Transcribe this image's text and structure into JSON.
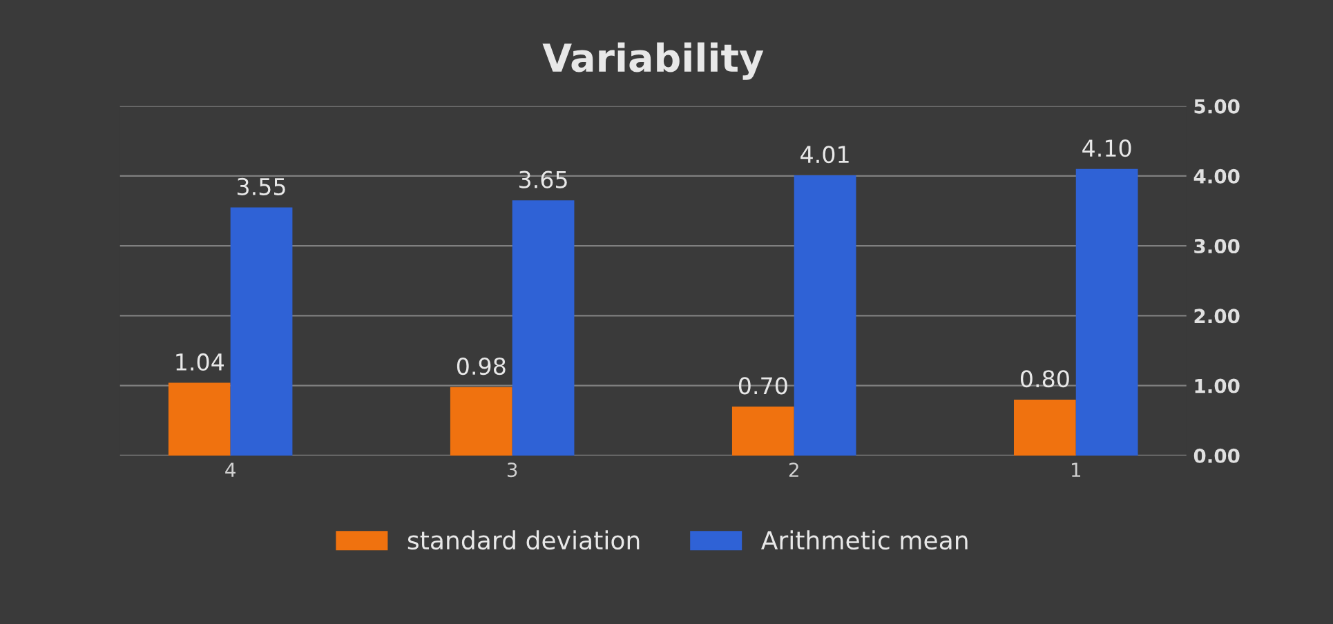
{
  "chart_data": {
    "type": "bar",
    "title": "Variability",
    "categories": [
      "4",
      "3",
      "2",
      "1"
    ],
    "series": [
      {
        "name": "standard deviation",
        "color": "#f0720f",
        "values": [
          1.04,
          0.98,
          0.7,
          0.8
        ],
        "value_labels": [
          "1.04",
          "0.98",
          "0.70",
          "0.80"
        ]
      },
      {
        "name": "Arithmetic mean",
        "color": "#2f62d6",
        "values": [
          3.55,
          3.65,
          4.01,
          4.1
        ],
        "value_labels": [
          "3.55",
          "3.65",
          "4.01",
          "4.10"
        ]
      }
    ],
    "ylim": [
      0,
      5
    ],
    "yticks": [
      {
        "value": 0,
        "label": "0.00"
      },
      {
        "value": 1,
        "label": "1.00"
      },
      {
        "value": 2,
        "label": "2.00"
      },
      {
        "value": 3,
        "label": "3.00"
      },
      {
        "value": 4,
        "label": "4.00"
      },
      {
        "value": 5,
        "label": "5.00"
      }
    ],
    "grid": "y",
    "legend": "bottom"
  }
}
